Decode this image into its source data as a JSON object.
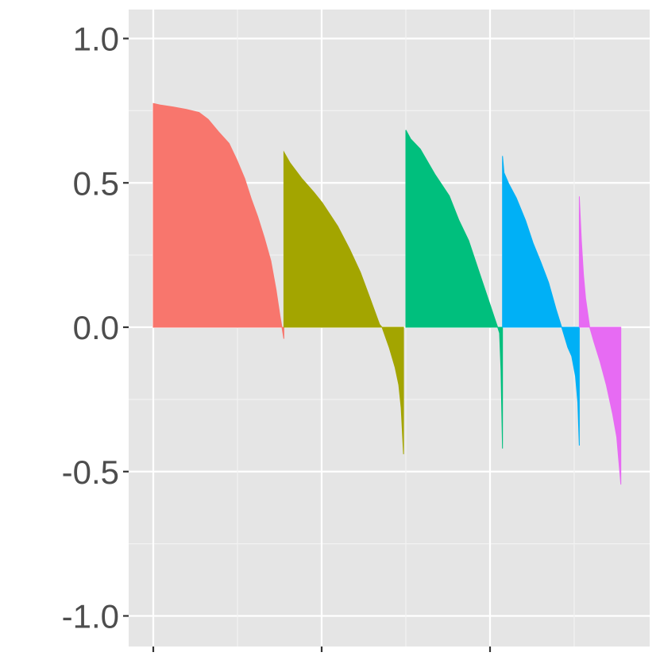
{
  "chart_data": {
    "type": "bar",
    "title": "",
    "xlabel": "",
    "ylabel": "",
    "ylim": [
      -1.1,
      1.1
    ],
    "xlim": [
      0,
      1
    ],
    "yticks": [
      -1.0,
      -0.5,
      0.0,
      0.5,
      1.0
    ],
    "ytick_labels": [
      "-1.0",
      "-0.5",
      "0.0",
      "0.5",
      "1.0"
    ],
    "x_gridlines": [
      0.05,
      0.2314,
      0.4128,
      0.5942,
      0.7756,
      0.9569
    ],
    "grid": true,
    "legend": "none",
    "background": "#E5E5E5",
    "series": [
      {
        "color": "#F8766D",
        "profile": [
          [
            0.0,
            0.775
          ],
          [
            0.05,
            0.77
          ],
          [
            0.15,
            0.763
          ],
          [
            0.25,
            0.755
          ],
          [
            0.35,
            0.744
          ],
          [
            0.42,
            0.72
          ],
          [
            0.5,
            0.677
          ],
          [
            0.58,
            0.637
          ],
          [
            0.64,
            0.58
          ],
          [
            0.7,
            0.515
          ],
          [
            0.75,
            0.445
          ],
          [
            0.8,
            0.383
          ],
          [
            0.85,
            0.31
          ],
          [
            0.9,
            0.23
          ],
          [
            0.94,
            0.13
          ],
          [
            0.97,
            0.04
          ],
          [
            0.985,
            0.0
          ],
          [
            1.0,
            -0.04
          ]
        ]
      },
      {
        "color": "#A3A500",
        "profile": [
          [
            0.0,
            0.607
          ],
          [
            0.05,
            0.57
          ],
          [
            0.15,
            0.515
          ],
          [
            0.25,
            0.468
          ],
          [
            0.32,
            0.432
          ],
          [
            0.45,
            0.35
          ],
          [
            0.55,
            0.27
          ],
          [
            0.64,
            0.19
          ],
          [
            0.72,
            0.1
          ],
          [
            0.8,
            0.01
          ],
          [
            0.82,
            0.0
          ],
          [
            0.88,
            -0.07
          ],
          [
            0.93,
            -0.14
          ],
          [
            0.96,
            -0.2
          ],
          [
            0.98,
            -0.28
          ],
          [
            1.0,
            -0.44
          ]
        ]
      },
      {
        "color": "#00BF7D",
        "profile": [
          [
            0.0,
            0.683
          ],
          [
            0.05,
            0.652
          ],
          [
            0.15,
            0.617
          ],
          [
            0.3,
            0.53
          ],
          [
            0.45,
            0.455
          ],
          [
            0.55,
            0.37
          ],
          [
            0.65,
            0.3
          ],
          [
            0.75,
            0.2
          ],
          [
            0.85,
            0.1
          ],
          [
            0.92,
            0.03
          ],
          [
            0.95,
            0.0
          ],
          [
            0.97,
            -0.02
          ],
          [
            0.985,
            -0.15
          ],
          [
            1.0,
            -0.42
          ]
        ]
      },
      {
        "color": "#00B0F6",
        "profile": [
          [
            0.0,
            0.593
          ],
          [
            0.02,
            0.535
          ],
          [
            0.08,
            0.498
          ],
          [
            0.18,
            0.448
          ],
          [
            0.3,
            0.37
          ],
          [
            0.4,
            0.29
          ],
          [
            0.5,
            0.225
          ],
          [
            0.6,
            0.155
          ],
          [
            0.7,
            0.06
          ],
          [
            0.77,
            0.0
          ],
          [
            0.85,
            -0.07
          ],
          [
            0.9,
            -0.1
          ],
          [
            0.95,
            -0.17
          ],
          [
            0.98,
            -0.26
          ],
          [
            1.0,
            -0.41
          ]
        ]
      },
      {
        "color": "#E76BF3",
        "profile": [
          [
            0.0,
            0.453
          ],
          [
            0.05,
            0.3
          ],
          [
            0.1,
            0.18
          ],
          [
            0.15,
            0.1
          ],
          [
            0.25,
            0.0
          ],
          [
            0.35,
            -0.05
          ],
          [
            0.5,
            -0.12
          ],
          [
            0.65,
            -0.2
          ],
          [
            0.8,
            -0.3
          ],
          [
            0.9,
            -0.38
          ],
          [
            1.0,
            -0.545
          ]
        ]
      }
    ],
    "series_x_ranges": [
      [
        0.05,
        0.3314
      ],
      [
        0.3314,
        0.5892
      ],
      [
        0.5942,
        0.8024
      ],
      [
        0.8024,
        0.968
      ],
      [
        0.968,
        1.0575
      ]
    ]
  }
}
